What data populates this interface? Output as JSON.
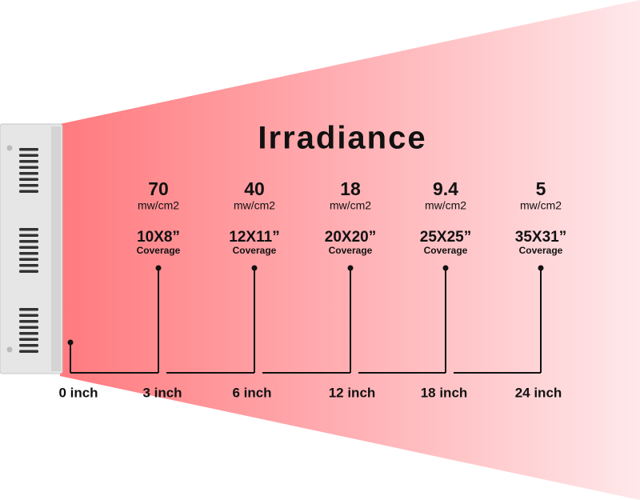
{
  "title": "Irradiance",
  "columns": [
    {
      "irradiance": "70",
      "unit": "mw/cm2",
      "coverage": "10X8”",
      "coverage_label": "Coverage"
    },
    {
      "irradiance": "40",
      "unit": "mw/cm2",
      "coverage": "12X11”",
      "coverage_label": "Coverage"
    },
    {
      "irradiance": "18",
      "unit": "mw/cm2",
      "coverage": "20X20”",
      "coverage_label": "Coverage"
    },
    {
      "irradiance": "9.4",
      "unit": "mw/cm2",
      "coverage": "25X25”",
      "coverage_label": "Coverage"
    },
    {
      "irradiance": "5",
      "unit": "mw/cm2",
      "coverage": "35X31”",
      "coverage_label": "Coverage"
    }
  ],
  "distances": [
    "0 inch",
    "3 inch",
    "6 inch",
    "12 inch",
    "18 inch",
    "24 inch"
  ]
}
